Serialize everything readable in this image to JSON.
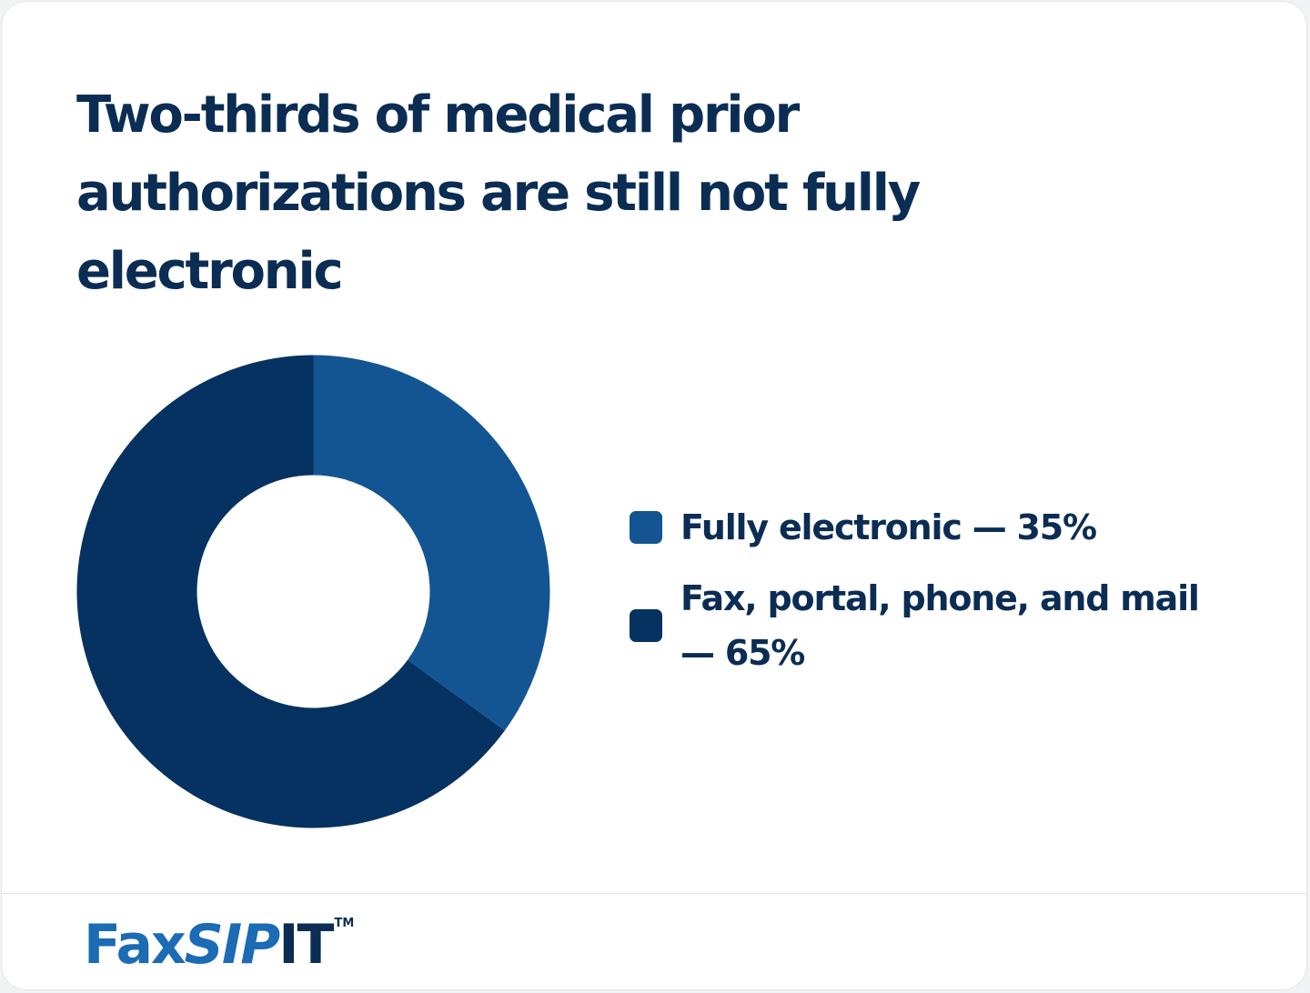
{
  "title": "Two-thirds of medical prior authorizations are still not fully electronic",
  "chart_data": {
    "type": "pie",
    "title": "Two-thirds of medical prior authorizations are still not fully electronic",
    "categories": [
      "Fully electronic",
      "Fax, portal, phone, and mail"
    ],
    "values": [
      35,
      65
    ],
    "unit": "%",
    "colors": [
      "#135592",
      "#053260"
    ],
    "donut": true,
    "legend_position": "right",
    "legend": [
      {
        "label": "Fully electronic — 35%"
      },
      {
        "label": "Fax, portal, phone, and mail — 65%"
      }
    ]
  },
  "brand": {
    "fax": "Fax",
    "sip": "SIP",
    "it": "IT",
    "tm": "TM"
  }
}
